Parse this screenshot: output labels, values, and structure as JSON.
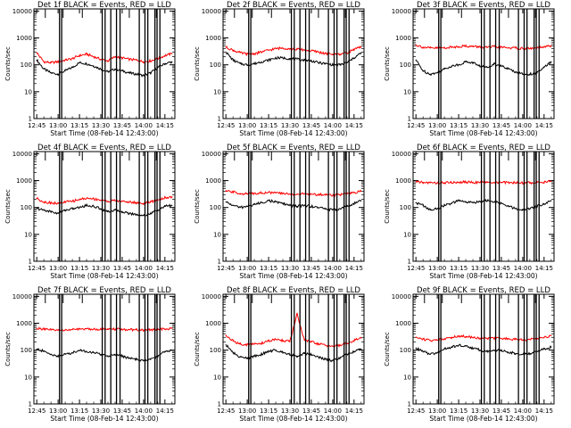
{
  "figure": {
    "colors": {
      "events": "#000000",
      "lld": "#ff0000",
      "background": "#ffffff"
    },
    "x_axis": {
      "ticks": [
        "12:45",
        "13:00",
        "13:15",
        "13:30",
        "13:45",
        "14:00",
        "14:15"
      ],
      "tick_minutes": [
        0,
        15,
        30,
        45,
        60,
        75,
        90
      ],
      "range_minutes": [
        -2,
        97
      ],
      "start_time": "12:43:00"
    },
    "y_axis": {
      "label": "Counts/sec",
      "scale": "log",
      "range": [
        1,
        12000
      ],
      "major_ticks": [
        1,
        10,
        100,
        1000,
        10000
      ],
      "major_tick_labels": [
        "1",
        "10",
        "100",
        "1000",
        "10000"
      ]
    },
    "gap_lines_minutes": [
      [
        16,
        17.5
      ],
      [
        46,
        48
      ],
      [
        52,
        56,
        58.5
      ],
      [
        72,
        76,
        78
      ],
      [
        83,
        84.5,
        86.5
      ]
    ],
    "short_markers_minutes": [
      6,
      18.5,
      32,
      65,
      84
    ]
  },
  "chart_data": [
    {
      "type": "line",
      "title": "Det 1f BLACK = Events, RED = LLD",
      "xlabel": "Start Time (08-Feb-14 12:43:00)",
      "ylabel": "Counts/sec",
      "x_unit": "minutes after 12:45",
      "yscale": "log",
      "ylim": [
        1,
        12000
      ],
      "x": [
        0,
        5,
        10,
        15,
        20,
        25,
        30,
        35,
        40,
        45,
        50,
        55,
        60,
        65,
        70,
        75,
        80,
        85,
        90,
        95
      ],
      "series": [
        {
          "name": "Events",
          "color": "#000000",
          "values": [
            150,
            70,
            50,
            45,
            60,
            80,
            120,
            110,
            90,
            70,
            55,
            70,
            60,
            50,
            45,
            40,
            50,
            80,
            110,
            130
          ]
        },
        {
          "name": "LLD",
          "color": "#ff0000",
          "values": [
            280,
            130,
            120,
            130,
            150,
            170,
            220,
            250,
            200,
            160,
            140,
            200,
            180,
            160,
            150,
            130,
            140,
            170,
            220,
            260
          ]
        }
      ]
    },
    {
      "type": "line",
      "title": "Det 2f BLACK = Events, RED = LLD",
      "xlabel": "Start Time (08-Feb-14 12:43:00)",
      "ylabel": "Counts/sec",
      "x_unit": "minutes after 12:45",
      "yscale": "log",
      "ylim": [
        1,
        12000
      ],
      "x": [
        0,
        5,
        10,
        15,
        20,
        25,
        30,
        35,
        40,
        45,
        50,
        55,
        60,
        65,
        70,
        75,
        80,
        85,
        90,
        95
      ],
      "series": [
        {
          "name": "Events",
          "color": "#000000",
          "values": [
            300,
            150,
            110,
            100,
            110,
            130,
            150,
            180,
            180,
            170,
            160,
            150,
            140,
            120,
            110,
            100,
            100,
            120,
            180,
            280
          ]
        },
        {
          "name": "LLD",
          "color": "#ff0000",
          "values": [
            450,
            350,
            280,
            250,
            260,
            300,
            350,
            400,
            420,
            400,
            380,
            360,
            330,
            300,
            260,
            250,
            250,
            280,
            380,
            450
          ]
        }
      ]
    },
    {
      "type": "line",
      "title": "Det 3f BLACK = Events, RED = LLD",
      "xlabel": "Start Time (08-Feb-14 12:43:00)",
      "ylabel": "Counts/sec",
      "x_unit": "minutes after 12:45",
      "yscale": "log",
      "ylim": [
        1,
        12000
      ],
      "x": [
        0,
        5,
        10,
        15,
        20,
        25,
        30,
        35,
        40,
        45,
        50,
        55,
        60,
        65,
        70,
        75,
        80,
        85,
        90,
        95
      ],
      "series": [
        {
          "name": "Events",
          "color": "#000000",
          "values": [
            150,
            60,
            45,
            50,
            70,
            90,
            100,
            130,
            120,
            90,
            80,
            110,
            90,
            70,
            55,
            45,
            45,
            50,
            80,
            130
          ]
        },
        {
          "name": "LLD",
          "color": "#ff0000",
          "values": [
            550,
            450,
            420,
            420,
            430,
            450,
            480,
            500,
            480,
            460,
            440,
            470,
            450,
            430,
            420,
            400,
            400,
            420,
            450,
            520
          ]
        }
      ]
    },
    {
      "type": "line",
      "title": "Det 4f BLACK = Events, RED = LLD",
      "xlabel": "Start Time (08-Feb-14 12:43:00)",
      "ylabel": "Counts/sec",
      "x_unit": "minutes after 12:45",
      "yscale": "log",
      "ylim": [
        1,
        12000
      ],
      "x": [
        0,
        5,
        10,
        15,
        20,
        25,
        30,
        35,
        40,
        45,
        50,
        55,
        60,
        65,
        70,
        75,
        80,
        85,
        90,
        95
      ],
      "series": [
        {
          "name": "Events",
          "color": "#000000",
          "values": [
            90,
            80,
            70,
            60,
            80,
            90,
            100,
            120,
            110,
            90,
            70,
            80,
            70,
            60,
            55,
            50,
            60,
            80,
            110,
            120
          ]
        },
        {
          "name": "LLD",
          "color": "#ff0000",
          "values": [
            220,
            160,
            150,
            140,
            160,
            170,
            200,
            220,
            210,
            190,
            170,
            180,
            170,
            160,
            150,
            140,
            160,
            190,
            230,
            250
          ]
        }
      ]
    },
    {
      "type": "line",
      "title": "Det 5f BLACK = Events, RED = LLD",
      "xlabel": "Start Time (08-Feb-14 12:43:00)",
      "ylabel": "Counts/sec",
      "x_unit": "minutes after 12:45",
      "yscale": "log",
      "ylim": [
        1,
        12000
      ],
      "x": [
        0,
        5,
        10,
        15,
        20,
        25,
        30,
        35,
        40,
        45,
        50,
        55,
        60,
        65,
        70,
        75,
        80,
        85,
        90,
        95
      ],
      "series": [
        {
          "name": "Events",
          "color": "#000000",
          "values": [
            160,
            120,
            100,
            110,
            130,
            150,
            180,
            160,
            140,
            120,
            110,
            120,
            110,
            100,
            90,
            80,
            90,
            110,
            140,
            180
          ]
        },
        {
          "name": "LLD",
          "color": "#ff0000",
          "values": [
            400,
            380,
            330,
            320,
            340,
            350,
            360,
            350,
            330,
            320,
            310,
            320,
            310,
            300,
            300,
            290,
            300,
            320,
            350,
            400
          ]
        }
      ]
    },
    {
      "type": "line",
      "title": "Det 6f BLACK = Events, RED = LLD",
      "xlabel": "Start Time (08-Feb-14 12:43:00)",
      "ylabel": "Counts/sec",
      "x_unit": "minutes after 12:45",
      "yscale": "log",
      "ylim": [
        1,
        12000
      ],
      "x": [
        0,
        5,
        10,
        15,
        20,
        25,
        30,
        35,
        40,
        45,
        50,
        55,
        60,
        65,
        70,
        75,
        80,
        85,
        90,
        95
      ],
      "series": [
        {
          "name": "Events",
          "color": "#000000",
          "values": [
            150,
            120,
            80,
            90,
            120,
            140,
            180,
            160,
            150,
            170,
            180,
            160,
            140,
            110,
            90,
            80,
            90,
            110,
            140,
            180
          ]
        },
        {
          "name": "LLD",
          "color": "#ff0000",
          "values": [
            900,
            850,
            830,
            820,
            830,
            850,
            870,
            880,
            870,
            860,
            850,
            860,
            850,
            840,
            830,
            820,
            830,
            850,
            880,
            950
          ]
        }
      ]
    },
    {
      "type": "line",
      "title": "Det 7f BLACK = Events, RED = LLD",
      "xlabel": "Start Time (08-Feb-14 12:43:00)",
      "ylabel": "Counts/sec",
      "x_unit": "minutes after 12:45",
      "yscale": "log",
      "ylim": [
        1,
        12000
      ],
      "x": [
        0,
        5,
        10,
        15,
        20,
        25,
        30,
        35,
        40,
        45,
        50,
        55,
        60,
        65,
        70,
        75,
        80,
        85,
        90,
        95
      ],
      "series": [
        {
          "name": "Events",
          "color": "#000000",
          "values": [
            110,
            90,
            70,
            60,
            70,
            80,
            100,
            90,
            80,
            70,
            60,
            70,
            60,
            50,
            45,
            40,
            45,
            60,
            90,
            100
          ]
        },
        {
          "name": "LLD",
          "color": "#ff0000",
          "values": [
            650,
            600,
            560,
            550,
            560,
            580,
            600,
            620,
            610,
            600,
            590,
            600,
            590,
            580,
            570,
            560,
            570,
            580,
            620,
            650
          ]
        }
      ]
    },
    {
      "type": "line",
      "title": "Det 8f BLACK = Events, RED = LLD",
      "xlabel": "Start Time (08-Feb-14 12:43:00)",
      "ylabel": "Counts/sec",
      "x_unit": "minutes after 12:45",
      "yscale": "log",
      "ylim": [
        1,
        12000
      ],
      "x": [
        0,
        5,
        10,
        15,
        20,
        25,
        30,
        35,
        40,
        45,
        50,
        55,
        60,
        65,
        70,
        75,
        80,
        85,
        90,
        95
      ],
      "series": [
        {
          "name": "Events",
          "color": "#000000",
          "values": [
            160,
            80,
            55,
            50,
            60,
            70,
            90,
            100,
            85,
            70,
            60,
            75,
            70,
            55,
            45,
            40,
            50,
            70,
            90,
            110
          ]
        },
        {
          "name": "LLD",
          "color": "#ff0000",
          "values": [
            350,
            220,
            170,
            160,
            170,
            180,
            220,
            250,
            230,
            210,
            2200,
            240,
            200,
            170,
            150,
            140,
            150,
            180,
            230,
            280
          ]
        }
      ]
    },
    {
      "type": "line",
      "title": "Det 9f BLACK = Events, RED = LLD",
      "xlabel": "Start Time (08-Feb-14 12:43:00)",
      "ylabel": "Counts/sec",
      "x_unit": "minutes after 12:45",
      "yscale": "log",
      "ylim": [
        1,
        12000
      ],
      "x": [
        0,
        5,
        10,
        15,
        20,
        25,
        30,
        35,
        40,
        45,
        50,
        55,
        60,
        65,
        70,
        75,
        80,
        85,
        90,
        95
      ],
      "series": [
        {
          "name": "Events",
          "color": "#000000",
          "values": [
            120,
            90,
            70,
            80,
            110,
            130,
            150,
            140,
            120,
            100,
            90,
            100,
            95,
            85,
            75,
            70,
            75,
            90,
            110,
            130
          ]
        },
        {
          "name": "LLD",
          "color": "#ff0000",
          "values": [
            300,
            260,
            230,
            240,
            270,
            300,
            340,
            320,
            300,
            280,
            270,
            280,
            270,
            260,
            250,
            240,
            250,
            270,
            300,
            350
          ]
        }
      ]
    }
  ]
}
